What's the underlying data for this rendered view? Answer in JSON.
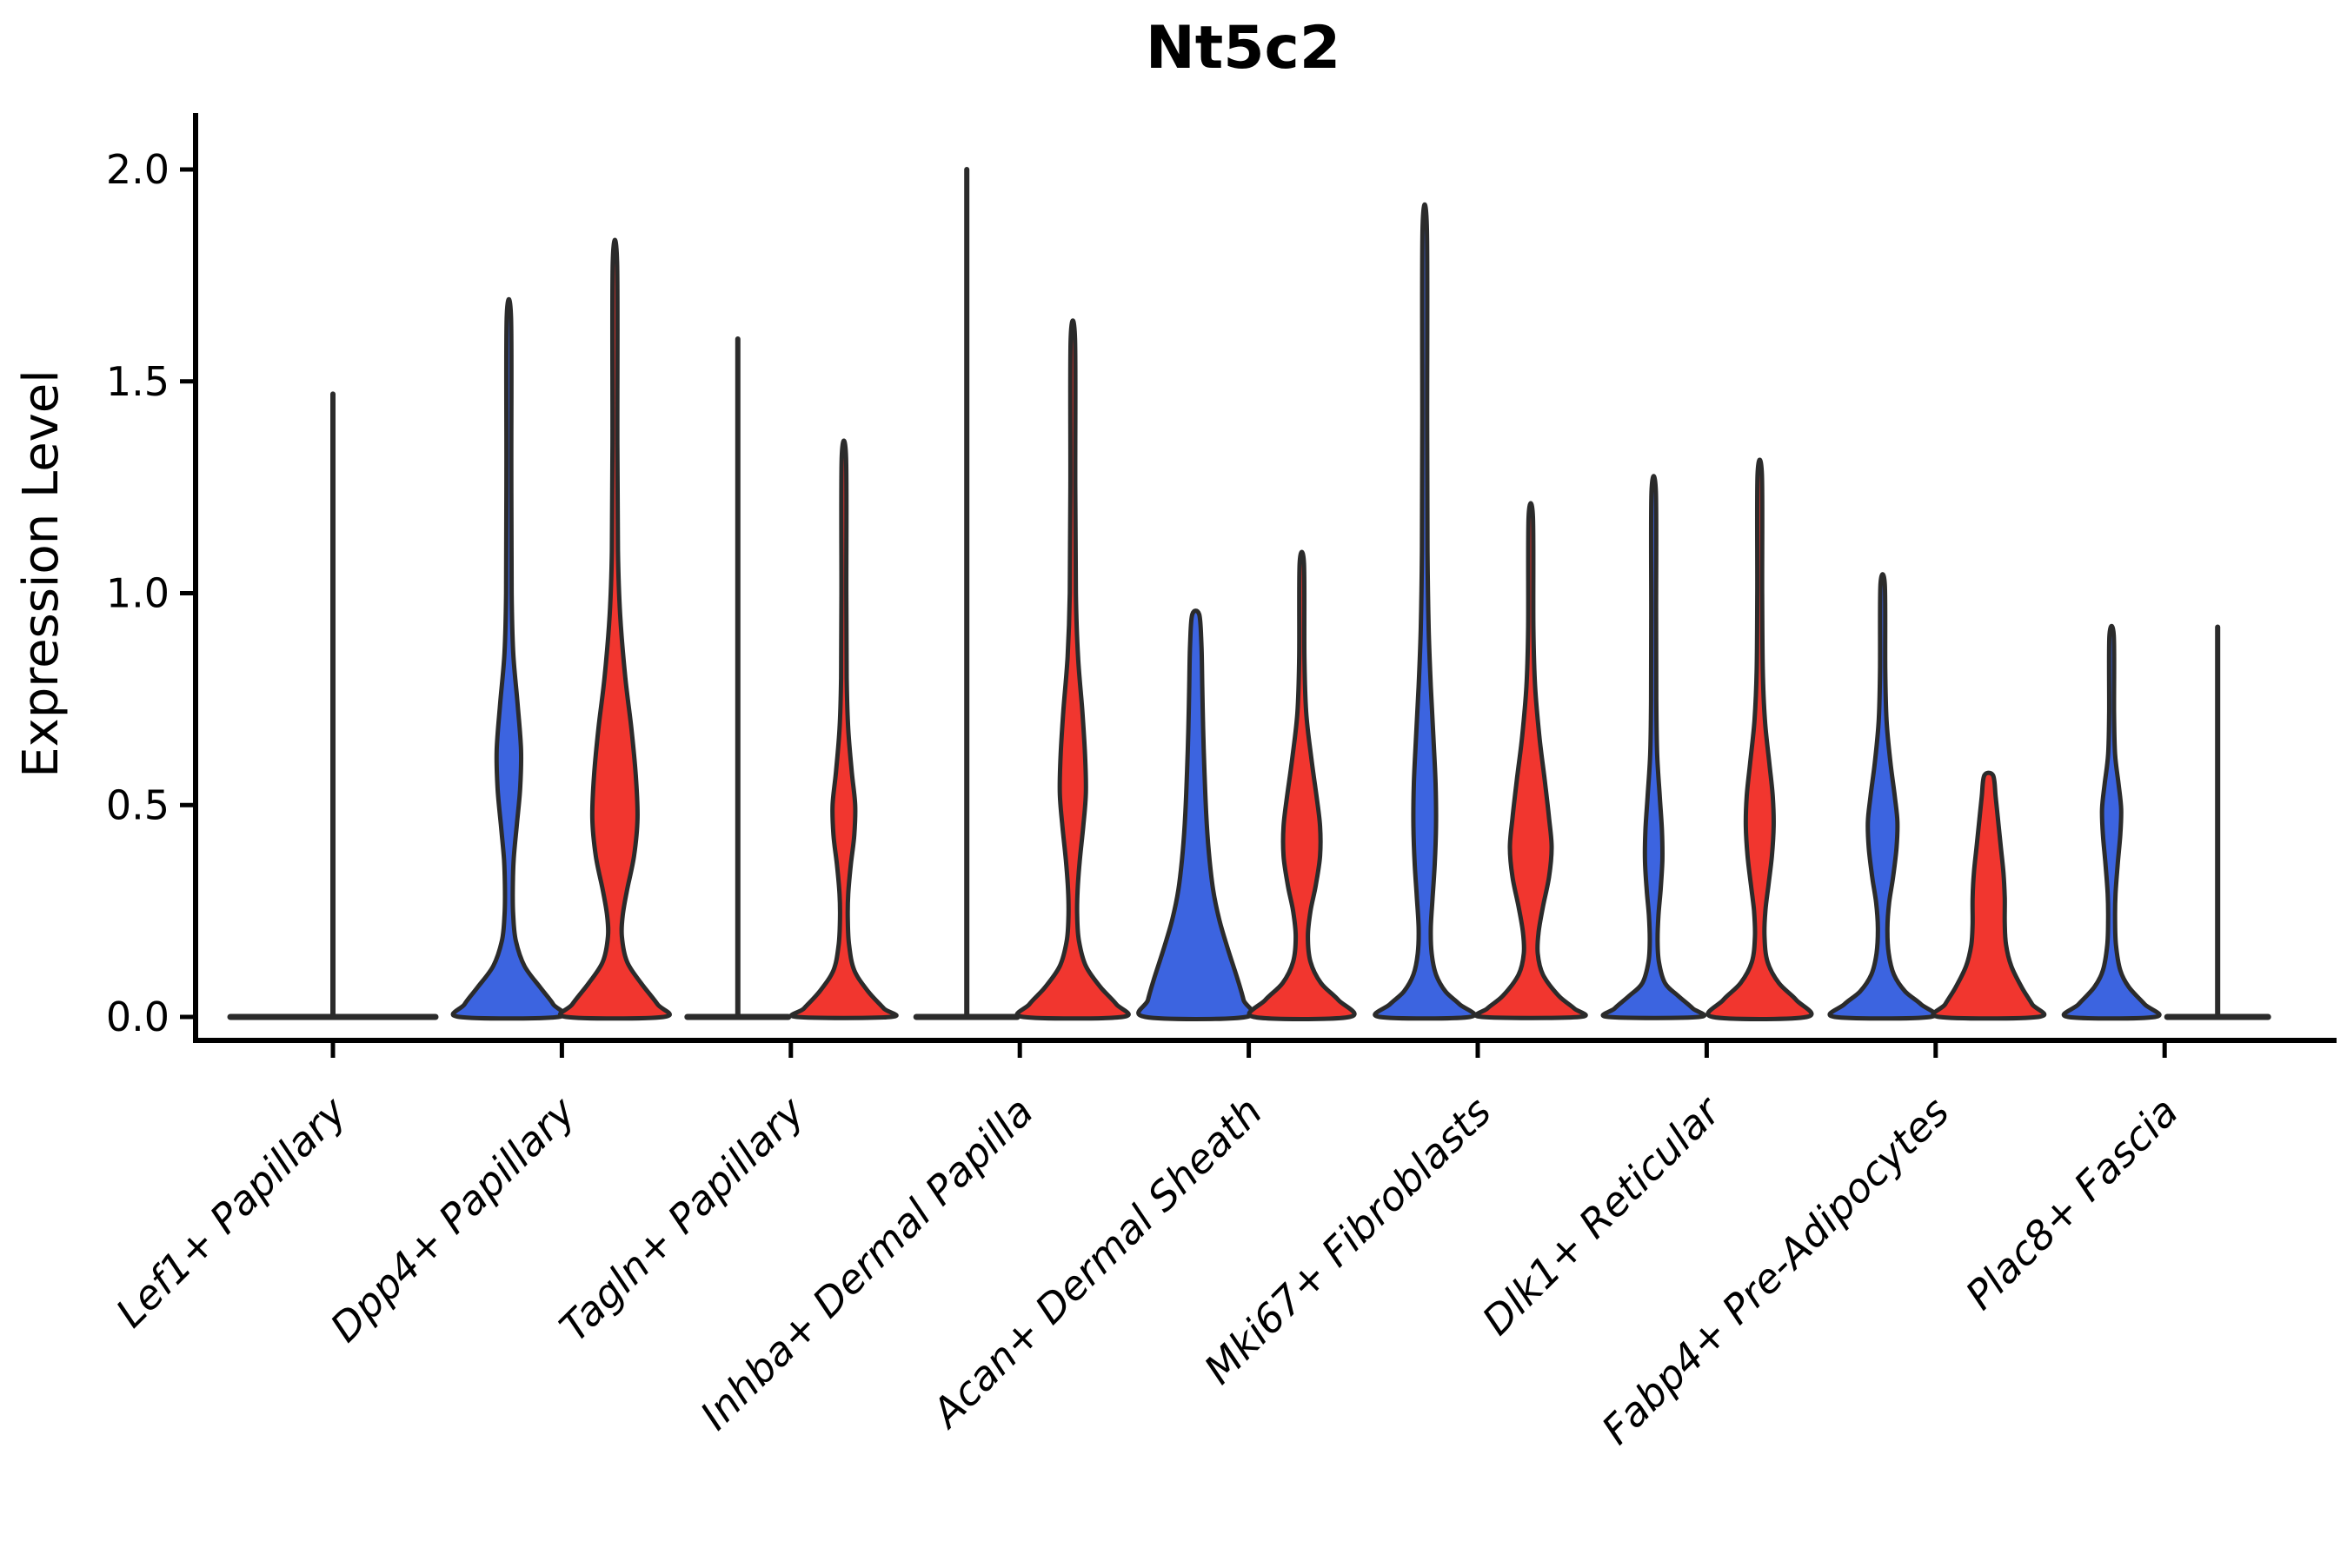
{
  "chart_data": {
    "type": "violin",
    "title": "Nt5c2",
    "ylabel": "Expression Level",
    "xlabel": "",
    "ylim": [
      0,
      2.05
    ],
    "y_ticks": [
      0.0,
      0.5,
      1.0,
      1.5,
      2.0
    ],
    "y_tick_labels": [
      "0.0",
      "0.5",
      "1.0",
      "1.5",
      "2.0"
    ],
    "grid": false,
    "legend": null,
    "group_colors": {
      "blue": "#3C64E0",
      "red": "#F1362F"
    },
    "outline_color": "#2B2B2B",
    "note": "Split violin plot of Nt5c2 expression per fibroblast subtype; blue = left violin of each pair, red = right violin. Flat violins are expression ~0 with a thin density spike up to max. profile = [expression_value, half_width_px] pairs of the kernel density outline.",
    "categories": [
      {
        "label": "Lef1+ Papillary",
        "violins": [
          {
            "group": "single",
            "fill": "none",
            "flat": true,
            "max": 1.47,
            "offset": 0,
            "half_width": 118
          }
        ]
      },
      {
        "label": "Dpp4+ Papillary",
        "violins": [
          {
            "group": "blue",
            "flat": false,
            "max": 1.65,
            "bulge_peak": 0.6,
            "offset": -61,
            "profile": [
              [
                1.65,
                2.5
              ],
              [
                1.3,
                2.8
              ],
              [
                1.0,
                3.2
              ],
              [
                0.86,
                5
              ],
              [
                0.74,
                10
              ],
              [
                0.63,
                14
              ],
              [
                0.54,
                13
              ],
              [
                0.45,
                9
              ],
              [
                0.37,
                5.5
              ],
              [
                0.3,
                4.5
              ],
              [
                0.24,
                5
              ],
              [
                0.18,
                8
              ],
              [
                0.12,
                18
              ],
              [
                0.07,
                36
              ],
              [
                0.03,
                51
              ],
              [
                0.0,
                57
              ]
            ]
          },
          {
            "group": "red",
            "flat": false,
            "max": 1.78,
            "bulge_peak": 0.47,
            "offset": 61,
            "profile": [
              [
                1.78,
                2.5
              ],
              [
                1.35,
                2.8
              ],
              [
                1.1,
                3.5
              ],
              [
                0.95,
                6
              ],
              [
                0.8,
                12
              ],
              [
                0.68,
                19
              ],
              [
                0.57,
                24
              ],
              [
                0.47,
                26
              ],
              [
                0.38,
                22
              ],
              [
                0.3,
                14
              ],
              [
                0.24,
                9
              ],
              [
                0.19,
                8
              ],
              [
                0.13,
                14
              ],
              [
                0.08,
                30
              ],
              [
                0.03,
                49
              ],
              [
                0.0,
                56
              ]
            ]
          }
        ]
      },
      {
        "label": "Tagln+ Papillary",
        "violins": [
          {
            "group": "blue",
            "fill": "none",
            "flat": true,
            "max": 1.6,
            "offset": -61,
            "half_width": 58
          },
          {
            "group": "red",
            "flat": false,
            "max": 1.32,
            "bulge_peak": 0.5,
            "offset": 61,
            "profile": [
              [
                1.32,
                2.5
              ],
              [
                1.0,
                2.8
              ],
              [
                0.8,
                3.2
              ],
              [
                0.68,
                5
              ],
              [
                0.58,
                9
              ],
              [
                0.5,
                13
              ],
              [
                0.43,
                12
              ],
              [
                0.36,
                8
              ],
              [
                0.29,
                5
              ],
              [
                0.23,
                4.5
              ],
              [
                0.17,
                6
              ],
              [
                0.11,
                12
              ],
              [
                0.06,
                28
              ],
              [
                0.02,
                46
              ],
              [
                0.0,
                54
              ]
            ]
          }
        ]
      },
      {
        "label": "Inhba+ Dermal Papilla",
        "violins": [
          {
            "group": "blue",
            "fill": "none",
            "flat": true,
            "max": 2.0,
            "offset": -61,
            "half_width": 58
          },
          {
            "group": "red",
            "flat": false,
            "max": 1.6,
            "bulge_peak": 0.55,
            "offset": 61,
            "profile": [
              [
                1.6,
                2.5
              ],
              [
                1.25,
                2.8
              ],
              [
                1.0,
                3.5
              ],
              [
                0.85,
                6
              ],
              [
                0.72,
                11
              ],
              [
                0.62,
                14
              ],
              [
                0.53,
                15
              ],
              [
                0.45,
                12
              ],
              [
                0.37,
                8
              ],
              [
                0.3,
                5.5
              ],
              [
                0.24,
                5
              ],
              [
                0.18,
                7
              ],
              [
                0.12,
                15
              ],
              [
                0.07,
                32
              ],
              [
                0.03,
                50
              ],
              [
                0.0,
                57
              ]
            ]
          }
        ]
      },
      {
        "label": "Acan+ Dermal Sheath",
        "violins": [
          {
            "group": "blue",
            "flat": false,
            "max": 0.95,
            "bulge_peak": 0.05,
            "offset": -61,
            "profile": [
              [
                0.95,
                4
              ],
              [
                0.88,
                6.5
              ],
              [
                0.78,
                7.5
              ],
              [
                0.68,
                8.5
              ],
              [
                0.58,
                10
              ],
              [
                0.48,
                12
              ],
              [
                0.39,
                15
              ],
              [
                0.3,
                20
              ],
              [
                0.23,
                27
              ],
              [
                0.16,
                37
              ],
              [
                0.09,
                48
              ],
              [
                0.04,
                55
              ],
              [
                0.0,
                58
              ]
            ]
          },
          {
            "group": "red",
            "flat": false,
            "max": 1.07,
            "bulge_peak": 0.43,
            "offset": 61,
            "profile": [
              [
                1.07,
                2.5
              ],
              [
                0.85,
                3
              ],
              [
                0.72,
                5
              ],
              [
                0.61,
                11
              ],
              [
                0.52,
                17
              ],
              [
                0.45,
                21
              ],
              [
                0.38,
                21
              ],
              [
                0.31,
                16
              ],
              [
                0.25,
                10
              ],
              [
                0.19,
                7
              ],
              [
                0.13,
                10
              ],
              [
                0.08,
                22
              ],
              [
                0.04,
                42
              ],
              [
                0.0,
                55
              ]
            ]
          }
        ]
      },
      {
        "label": "Mki67+ Fibroblasts",
        "violins": [
          {
            "group": "blue",
            "flat": false,
            "max": 1.86,
            "bulge_peak": 0.45,
            "offset": -61,
            "profile": [
              [
                1.86,
                2.5
              ],
              [
                1.4,
                2.8
              ],
              [
                1.1,
                3.2
              ],
              [
                0.92,
                4.5
              ],
              [
                0.78,
                7
              ],
              [
                0.66,
                10
              ],
              [
                0.55,
                12.5
              ],
              [
                0.45,
                13
              ],
              [
                0.36,
                11.5
              ],
              [
                0.28,
                9
              ],
              [
                0.21,
                7
              ],
              [
                0.15,
                8
              ],
              [
                0.1,
                13
              ],
              [
                0.06,
                24
              ],
              [
                0.03,
                40
              ],
              [
                0.0,
                52
              ]
            ]
          },
          {
            "group": "red",
            "flat": false,
            "max": 1.18,
            "bulge_peak": 0.4,
            "offset": 61,
            "profile": [
              [
                1.18,
                2.5
              ],
              [
                0.92,
                3
              ],
              [
                0.78,
                5
              ],
              [
                0.66,
                10
              ],
              [
                0.56,
                16
              ],
              [
                0.47,
                21
              ],
              [
                0.4,
                24
              ],
              [
                0.33,
                21
              ],
              [
                0.26,
                14
              ],
              [
                0.2,
                9
              ],
              [
                0.15,
                8
              ],
              [
                0.1,
                14
              ],
              [
                0.05,
                32
              ],
              [
                0.02,
                50
              ],
              [
                0.0,
                56
              ]
            ]
          }
        ]
      },
      {
        "label": "Dlk1+ Reticular",
        "violins": [
          {
            "group": "blue",
            "flat": false,
            "max": 1.24,
            "bulge_peak": 0.38,
            "offset": -61,
            "profile": [
              [
                1.24,
                2.5
              ],
              [
                0.95,
                2.8
              ],
              [
                0.75,
                3
              ],
              [
                0.62,
                4
              ],
              [
                0.52,
                7
              ],
              [
                0.44,
                9.5
              ],
              [
                0.37,
                10
              ],
              [
                0.3,
                8
              ],
              [
                0.24,
                5.5
              ],
              [
                0.18,
                4.5
              ],
              [
                0.13,
                6
              ],
              [
                0.08,
                13
              ],
              [
                0.05,
                28
              ],
              [
                0.02,
                45
              ],
              [
                0.0,
                52
              ]
            ]
          },
          {
            "group": "red",
            "flat": false,
            "max": 1.28,
            "bulge_peak": 0.45,
            "offset": 61,
            "profile": [
              [
                1.28,
                2.5
              ],
              [
                1.0,
                2.8
              ],
              [
                0.82,
                3.5
              ],
              [
                0.7,
                6
              ],
              [
                0.6,
                11
              ],
              [
                0.52,
                15
              ],
              [
                0.45,
                16
              ],
              [
                0.38,
                14
              ],
              [
                0.31,
                10
              ],
              [
                0.25,
                6.5
              ],
              [
                0.19,
                5.5
              ],
              [
                0.13,
                9
              ],
              [
                0.08,
                22
              ],
              [
                0.04,
                42
              ],
              [
                0.0,
                54
              ]
            ]
          }
        ]
      },
      {
        "label": "Fabp4+ Pre-Adipocytes",
        "violins": [
          {
            "group": "blue",
            "flat": false,
            "max": 1.02,
            "bulge_peak": 0.46,
            "offset": -61,
            "profile": [
              [
                1.02,
                2.5
              ],
              [
                0.82,
                3
              ],
              [
                0.7,
                4.5
              ],
              [
                0.6,
                9
              ],
              [
                0.52,
                14
              ],
              [
                0.46,
                17
              ],
              [
                0.4,
                16
              ],
              [
                0.33,
                12
              ],
              [
                0.27,
                7.5
              ],
              [
                0.21,
                5.5
              ],
              [
                0.15,
                7
              ],
              [
                0.1,
                13
              ],
              [
                0.06,
                26
              ],
              [
                0.03,
                44
              ],
              [
                0.0,
                55
              ]
            ]
          },
          {
            "group": "red",
            "flat": false,
            "max": 0.57,
            "bulge_peak": 0.1,
            "offset": 61,
            "profile": [
              [
                0.57,
                5
              ],
              [
                0.52,
                8
              ],
              [
                0.46,
                11
              ],
              [
                0.4,
                14
              ],
              [
                0.34,
                17
              ],
              [
                0.28,
                18.5
              ],
              [
                0.22,
                18.5
              ],
              [
                0.17,
                20
              ],
              [
                0.12,
                26
              ],
              [
                0.07,
                38
              ],
              [
                0.03,
                50
              ],
              [
                0.0,
                57
              ]
            ]
          }
        ]
      },
      {
        "label": "Plac8+ Fascia",
        "violins": [
          {
            "group": "blue",
            "flat": false,
            "max": 0.9,
            "bulge_peak": 0.49,
            "offset": -61,
            "profile": [
              [
                0.9,
                2.5
              ],
              [
                0.72,
                2.8
              ],
              [
                0.62,
                4
              ],
              [
                0.55,
                8
              ],
              [
                0.49,
                11
              ],
              [
                0.43,
                10
              ],
              [
                0.36,
                7
              ],
              [
                0.29,
                4.5
              ],
              [
                0.23,
                4
              ],
              [
                0.17,
                5
              ],
              [
                0.11,
                10
              ],
              [
                0.07,
                20
              ],
              [
                0.03,
                38
              ],
              [
                0.0,
                50
              ]
            ]
          },
          {
            "group": "red",
            "fill": "none",
            "flat": true,
            "max": 0.92,
            "offset": 61,
            "half_width": 58
          }
        ]
      }
    ]
  }
}
